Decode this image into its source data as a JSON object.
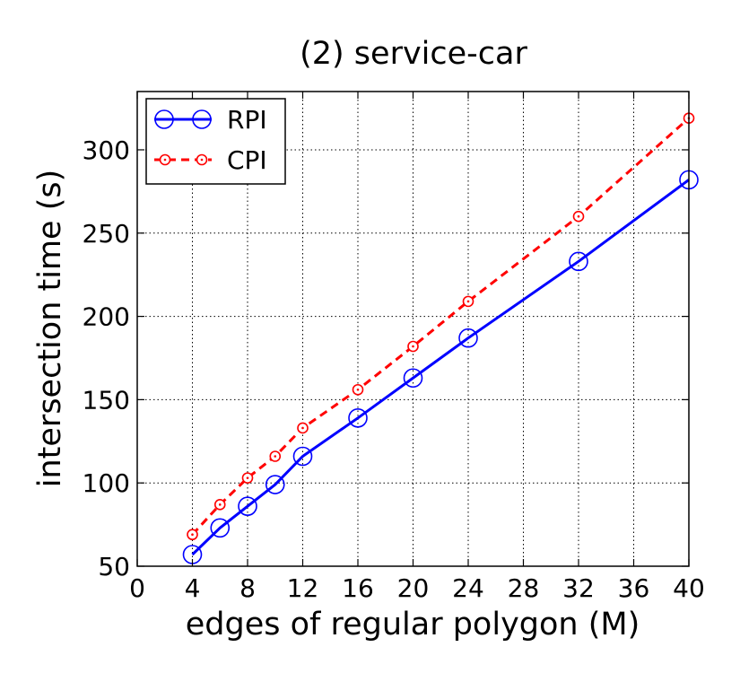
{
  "chart_data": {
    "type": "line",
    "title": "(2) service-car",
    "xlabel": "edges of regular polygon (M)",
    "ylabel": "intersection time (s)",
    "xlim": [
      0,
      40
    ],
    "ylim": [
      50,
      335
    ],
    "xticks": [
      0,
      4,
      8,
      12,
      16,
      20,
      24,
      28,
      32,
      36,
      40
    ],
    "yticks": [
      50,
      100,
      150,
      200,
      250,
      300
    ],
    "grid": true,
    "legend_position": "top-left",
    "series": [
      {
        "name": "RPI",
        "color": "#0000ff",
        "line_style": "solid",
        "marker": "circle-large",
        "x": [
          4,
          6,
          8,
          10,
          12,
          16,
          20,
          24,
          32,
          40
        ],
        "y": [
          57,
          73,
          86,
          99,
          116,
          139,
          163,
          187,
          233,
          282
        ]
      },
      {
        "name": "CPI",
        "color": "#ff0000",
        "line_style": "dashed",
        "marker": "circle-dot-small",
        "x": [
          4,
          6,
          8,
          10,
          12,
          16,
          20,
          24,
          32,
          40
        ],
        "y": [
          69,
          87,
          103,
          116,
          133,
          156,
          182,
          209,
          260,
          319
        ]
      }
    ]
  }
}
